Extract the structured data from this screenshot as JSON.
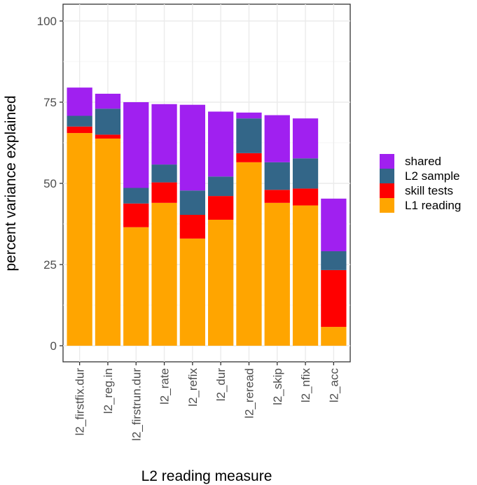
{
  "chart_data": {
    "type": "bar",
    "stacked": true,
    "categories": [
      "l2_firstfix.dur",
      "l2_reg.in",
      "l2_firstrun.dur",
      "l2_rate",
      "l2_refix",
      "l2_dur",
      "l2_reread",
      "l2_skip",
      "l2_nfix",
      "l2_acc"
    ],
    "series": [
      {
        "name": "L1 reading",
        "color": "#FFA500",
        "values": [
          65.5,
          63.8,
          36.5,
          44.0,
          33.0,
          38.8,
          56.5,
          44.0,
          43.2,
          5.8
        ]
      },
      {
        "name": "skill tests",
        "color": "#FF0000",
        "values": [
          2.0,
          1.2,
          7.3,
          6.3,
          7.3,
          7.3,
          2.8,
          4.0,
          5.2,
          17.5
        ]
      },
      {
        "name": "L2 sample",
        "color": "#336688",
        "values": [
          3.3,
          8.0,
          4.8,
          5.5,
          7.5,
          6.0,
          10.7,
          8.5,
          9.3,
          5.8
        ]
      },
      {
        "name": "shared",
        "color": "#A020F0",
        "values": [
          8.7,
          4.6,
          26.4,
          18.6,
          26.4,
          20.0,
          1.8,
          14.5,
          12.3,
          16.2
        ]
      }
    ],
    "legend_order": [
      "shared",
      "L2 sample",
      "skill tests",
      "L1 reading"
    ],
    "xlabel": "L2 reading measure",
    "ylabel": "percent variance explained",
    "ylim": [
      0,
      100
    ],
    "yticks": [
      0,
      25,
      50,
      75,
      100
    ],
    "grid": true,
    "legend_position": "right"
  }
}
